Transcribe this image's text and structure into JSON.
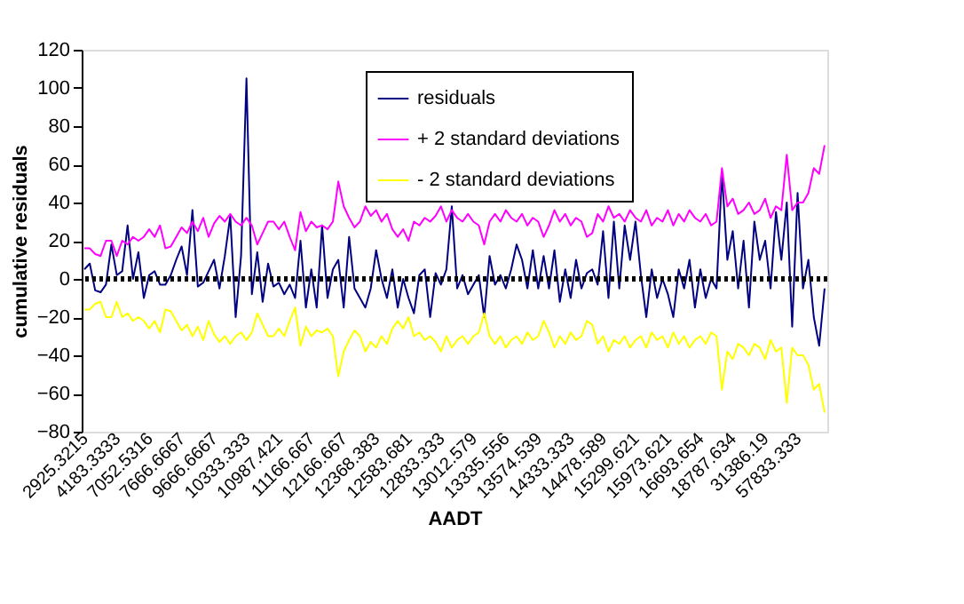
{
  "chart_data": {
    "type": "line",
    "xlabel": "AADT",
    "ylabel": "cumulative residuals",
    "categories": [
      "2925.3215",
      null,
      null,
      null,
      null,
      null,
      "4183.3333",
      null,
      null,
      null,
      null,
      null,
      "7052.5316",
      null,
      null,
      null,
      null,
      null,
      "7666.6667",
      null,
      null,
      null,
      null,
      null,
      "9666.6667",
      null,
      null,
      null,
      null,
      null,
      "10333.333",
      null,
      null,
      null,
      null,
      null,
      "10987.421",
      null,
      null,
      null,
      null,
      null,
      "11166.667",
      null,
      null,
      null,
      null,
      null,
      "12166.667",
      null,
      null,
      null,
      null,
      null,
      "12368.383",
      null,
      null,
      null,
      null,
      null,
      "12583.681",
      null,
      null,
      null,
      null,
      null,
      "12833.333",
      null,
      null,
      null,
      null,
      null,
      "13012.579",
      null,
      null,
      null,
      null,
      null,
      "13335.556",
      null,
      null,
      null,
      null,
      null,
      "13574.539",
      null,
      null,
      null,
      null,
      null,
      "14333.333",
      null,
      null,
      null,
      null,
      null,
      "14478.589",
      null,
      null,
      null,
      null,
      null,
      "15299.621",
      null,
      null,
      null,
      null,
      null,
      "15973.621",
      null,
      null,
      null,
      null,
      null,
      "16693.654",
      null,
      null,
      null,
      null,
      null,
      "18787.634",
      null,
      null,
      null,
      null,
      null,
      "31386.19",
      null,
      null,
      null,
      null,
      null,
      "57833.333",
      null,
      null,
      null,
      null,
      null
    ],
    "series": [
      {
        "name": "residuals",
        "color": "#000080",
        "values": [
          5,
          8,
          -6,
          -7,
          -3,
          18,
          2,
          4,
          28,
          0,
          14,
          -10,
          2,
          4,
          -3,
          -3,
          2,
          10,
          17,
          2,
          36,
          -4,
          -2,
          4,
          10,
          -5,
          12,
          33,
          -20,
          12,
          105,
          -8,
          14,
          -12,
          8,
          -4,
          -2,
          -8,
          -3,
          -10,
          20,
          -15,
          5,
          -15,
          28,
          -10,
          5,
          10,
          -15,
          22,
          -5,
          -10,
          -15,
          -5,
          15,
          0,
          -10,
          5,
          -15,
          0,
          -10,
          -18,
          2,
          5,
          -20,
          3,
          -3,
          5,
          38,
          -5,
          2,
          -8,
          -3,
          2,
          -20,
          12,
          -3,
          2,
          -5,
          5,
          18,
          10,
          -5,
          15,
          -5,
          12,
          -5,
          15,
          -12,
          5,
          -10,
          10,
          -5,
          3,
          5,
          -3,
          25,
          -10,
          30,
          -5,
          28,
          10,
          30,
          2,
          -20,
          5,
          -10,
          0,
          -8,
          -20,
          5,
          -5,
          10,
          -15,
          5,
          -10,
          0,
          -5,
          55,
          10,
          25,
          -5,
          20,
          -15,
          30,
          10,
          20,
          -5,
          35,
          10,
          40,
          -25,
          45,
          -5,
          10,
          -20,
          -35,
          -5
        ]
      },
      {
        "name": "+ 2 standard deviations",
        "color": "#ff00ff",
        "values": [
          16,
          16,
          13,
          12,
          20,
          20,
          12,
          20,
          18,
          22,
          20,
          22,
          26,
          22,
          28,
          16,
          17,
          22,
          27,
          24,
          30,
          25,
          32,
          22,
          29,
          33,
          30,
          34,
          30,
          28,
          32,
          28,
          18,
          24,
          30,
          30,
          26,
          30,
          22,
          15,
          35,
          25,
          30,
          27,
          28,
          26,
          30,
          51,
          38,
          32,
          27,
          30,
          38,
          33,
          36,
          30,
          34,
          26,
          22,
          26,
          20,
          30,
          28,
          32,
          30,
          33,
          38,
          30,
          36,
          32,
          30,
          34,
          30,
          28,
          18,
          30,
          34,
          30,
          36,
          32,
          30,
          34,
          28,
          32,
          30,
          22,
          28,
          36,
          30,
          34,
          28,
          32,
          30,
          22,
          24,
          34,
          30,
          38,
          32,
          34,
          30,
          36,
          32,
          30,
          36,
          28,
          32,
          30,
          36,
          28,
          34,
          30,
          36,
          32,
          30,
          34,
          28,
          30,
          58,
          38,
          42,
          34,
          36,
          40,
          34,
          36,
          42,
          32,
          38,
          36,
          65,
          36,
          40,
          40,
          45,
          58,
          55,
          70
        ]
      },
      {
        "name": "- 2 standard deviations",
        "color": "#ffff00",
        "values": [
          -16,
          -16,
          -13,
          -12,
          -20,
          -20,
          -12,
          -20,
          -18,
          -22,
          -20,
          -22,
          -26,
          -22,
          -28,
          -16,
          -17,
          -22,
          -27,
          -24,
          -30,
          -25,
          -32,
          -22,
          -29,
          -33,
          -30,
          -34,
          -30,
          -28,
          -32,
          -28,
          -18,
          -24,
          -30,
          -30,
          -26,
          -30,
          -22,
          -15,
          -35,
          -25,
          -30,
          -27,
          -28,
          -26,
          -30,
          -51,
          -38,
          -32,
          -27,
          -30,
          -38,
          -33,
          -36,
          -30,
          -34,
          -26,
          -22,
          -26,
          -20,
          -30,
          -28,
          -32,
          -30,
          -33,
          -38,
          -30,
          -36,
          -32,
          -30,
          -34,
          -30,
          -28,
          -18,
          -30,
          -34,
          -30,
          -36,
          -32,
          -30,
          -34,
          -28,
          -32,
          -30,
          -22,
          -28,
          -36,
          -30,
          -34,
          -28,
          -32,
          -30,
          -22,
          -24,
          -34,
          -30,
          -38,
          -32,
          -34,
          -30,
          -36,
          -32,
          -30,
          -36,
          -28,
          -32,
          -30,
          -36,
          -28,
          -34,
          -30,
          -36,
          -32,
          -30,
          -34,
          -28,
          -30,
          -58,
          -38,
          -42,
          -34,
          -36,
          -40,
          -34,
          -36,
          -42,
          -32,
          -38,
          -36,
          -65,
          -36,
          -40,
          -40,
          -45,
          -58,
          -55,
          -70
        ]
      }
    ],
    "ylim": [
      -80,
      120
    ],
    "yticks": [
      -80,
      -60,
      -40,
      -20,
      0,
      20,
      40,
      60,
      80,
      100,
      120
    ],
    "grid": false,
    "legend": "top right",
    "marker": "none",
    "line_style": "solid",
    "ref_lines": [
      {
        "axis": "y",
        "value": 0,
        "color": "#000000",
        "line_style": "dotted"
      }
    ]
  }
}
